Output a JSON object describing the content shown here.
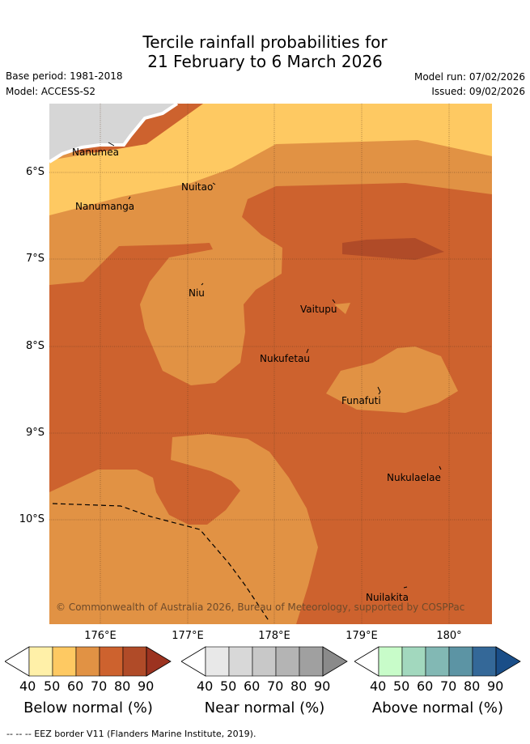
{
  "title": {
    "line1": "Tercile rainfall probabilities for",
    "line2": "21 February to 6 March 2026"
  },
  "meta": {
    "base_period": "Base period: 1981-2018",
    "model": "Model: ACCESS-S2",
    "model_run": "Model run: 07/02/2026",
    "issued": "Issued: 09/02/2026"
  },
  "axes": {
    "y_ticks": [
      "6°S",
      "7°S",
      "8°S",
      "9°S",
      "10°S"
    ],
    "x_ticks": [
      "176°E",
      "177°E",
      "178°E",
      "179°E",
      "180°"
    ]
  },
  "places": {
    "nanumea": "Nanumea",
    "nuitao": "Nuitao",
    "nanumanga": "Nanumanga",
    "niu": "Niu",
    "vaitupu": "Vaitupu",
    "nukufetau": "Nukufetau",
    "funafuti": "Funafuti",
    "nukulaelae": "Nukulaelae",
    "nuilakita": "Nuilakita"
  },
  "copyright": "© Commonwealth of Australia 2026, Bureau of Meteorology, supported by COSPPac",
  "colorbars": {
    "below": {
      "title": "Below normal (%)",
      "labels": [
        "40",
        "50",
        "60",
        "70",
        "80",
        "90"
      ],
      "colors": [
        "#fff0a8",
        "#fec962",
        "#e19244",
        "#cd622e",
        "#b04b28",
        "#9c3320"
      ]
    },
    "near": {
      "title": "Near normal (%)",
      "labels": [
        "40",
        "50",
        "60",
        "70",
        "80",
        "90"
      ],
      "colors": [
        "#e8e8e8",
        "#d8d8d8",
        "#c8c8c8",
        "#b4b4b4",
        "#a0a0a0",
        "#8a8a8a"
      ]
    },
    "above": {
      "title": "Above normal (%)",
      "labels": [
        "40",
        "50",
        "60",
        "70",
        "80",
        "90"
      ],
      "colors": [
        "#c8fcc9",
        "#a2d8be",
        "#82b8b4",
        "#5c94a4",
        "#346898",
        "#1a4e88"
      ]
    }
  },
  "footer": "--  --  -- EEZ border V11 (Flanders Marine Institute, 2019)."
}
